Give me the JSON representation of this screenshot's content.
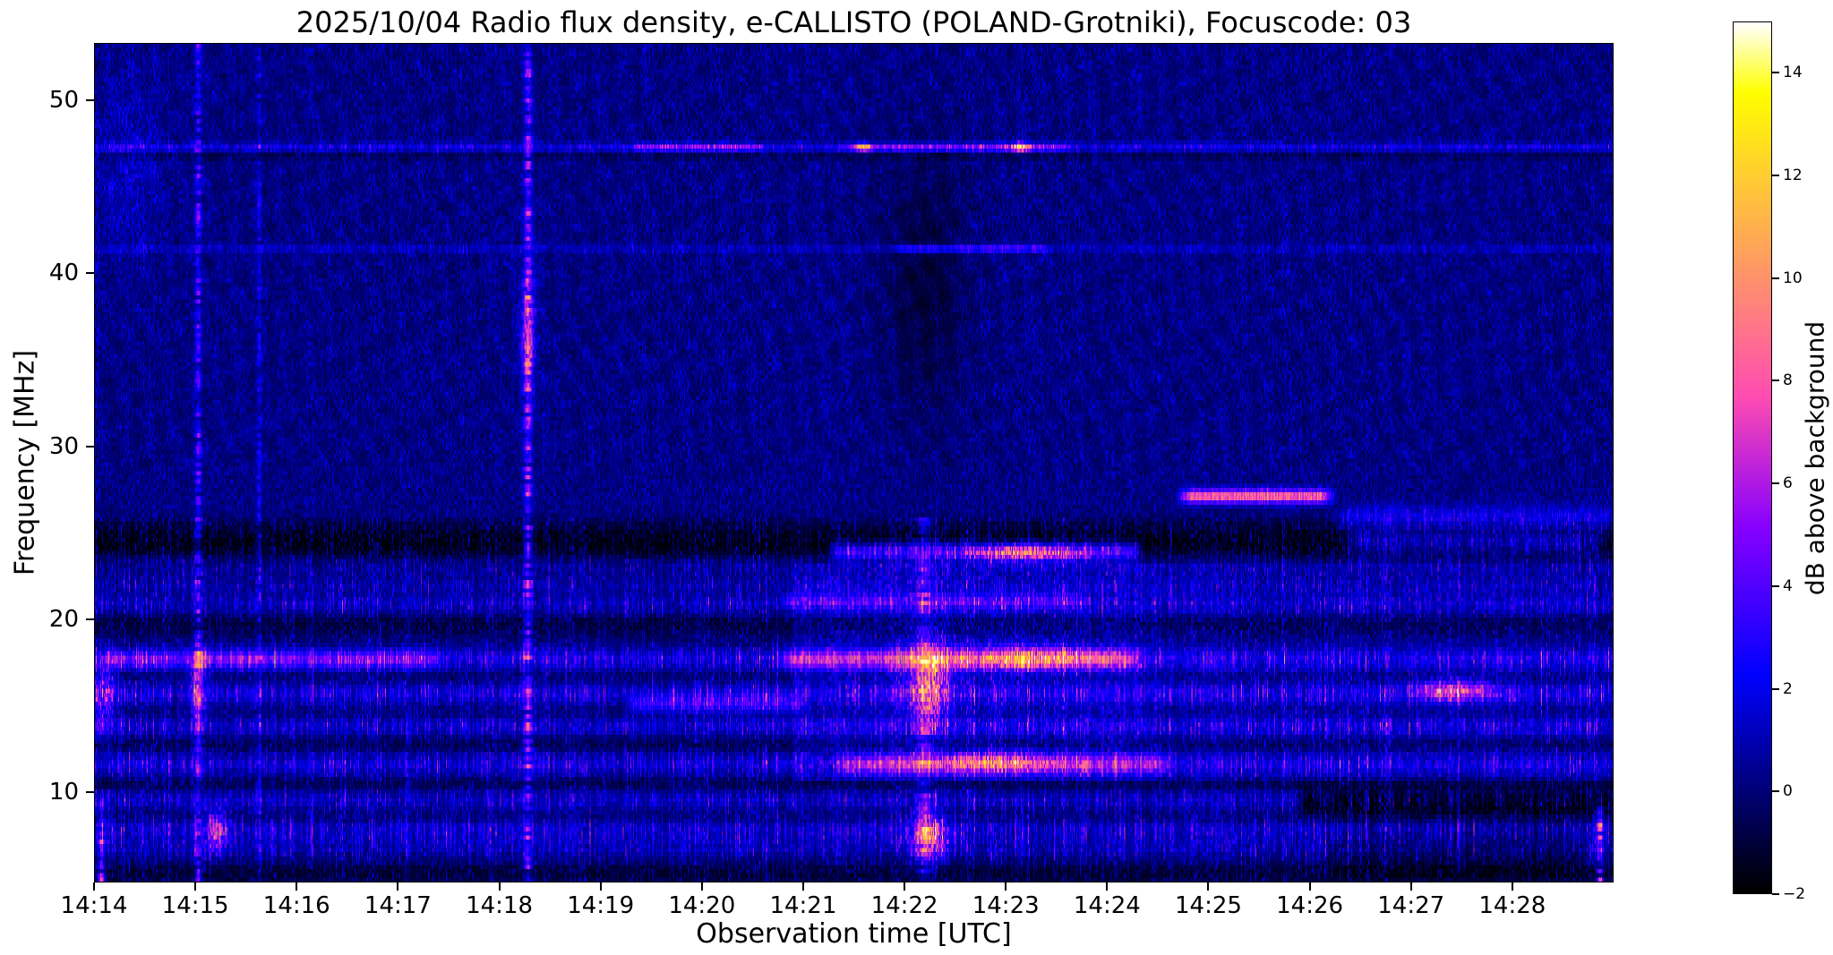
{
  "figure": {
    "title": "2025/10/04  Radio flux density, e-CALLISTO (POLAND-Grotniki), Focuscode: 03",
    "xlabel": "Observation time [UTC]",
    "ylabel": "Frequency [MHz]",
    "colorbar_label": "dB above background"
  },
  "chart_data": {
    "type": "heatmap",
    "subtype": "solar-radio-spectrogram",
    "title": "2025/10/04  Radio flux density, e-CALLISTO (POLAND-Grotniki), Focuscode: 03",
    "xlabel": "Observation time [UTC]",
    "ylabel": "Frequency [MHz]",
    "grid": false,
    "start_time_utc": "14:14",
    "end_time_utc": "14:29",
    "x_range_minutes": [
      0,
      15
    ],
    "x_ticks": [
      {
        "label": "14:14",
        "minute": 0
      },
      {
        "label": "14:15",
        "minute": 1
      },
      {
        "label": "14:16",
        "minute": 2
      },
      {
        "label": "14:17",
        "minute": 3
      },
      {
        "label": "14:18",
        "minute": 4
      },
      {
        "label": "14:19",
        "minute": 5
      },
      {
        "label": "14:20",
        "minute": 6
      },
      {
        "label": "14:21",
        "minute": 7
      },
      {
        "label": "14:22",
        "minute": 8
      },
      {
        "label": "14:23",
        "minute": 9
      },
      {
        "label": "14:24",
        "minute": 10
      },
      {
        "label": "14:25",
        "minute": 11
      },
      {
        "label": "14:26",
        "minute": 12
      },
      {
        "label": "14:27",
        "minute": 13
      },
      {
        "label": "14:28",
        "minute": 14
      }
    ],
    "freq_range_mhz": [
      4.8,
      53.3
    ],
    "y_ticks": [
      50,
      40,
      30,
      20,
      10
    ],
    "y_tick_labels": [
      "50",
      "40",
      "30",
      "20",
      "10"
    ],
    "colormap": "gnuplot2-like (black-blue-violet-magenta-orange-yellow-white)",
    "colorbar": {
      "label": "dB above background",
      "range": [
        -2,
        15
      ],
      "ticks": [
        14,
        12,
        10,
        8,
        6,
        4,
        2,
        0,
        -2
      ],
      "tick_labels": [
        "14",
        "12",
        "10",
        "8",
        "6",
        "4",
        "2",
        "0",
        "−2"
      ]
    },
    "noise": {
      "background_db": [
        -1,
        2
      ],
      "description": "dense blue speckle noise over black background"
    },
    "ripples": {
      "region_mhz": [
        27,
        53.3
      ],
      "amplitude_db": 0.8,
      "description": "faint diagonal interference fringes above ~27 MHz"
    },
    "bands": [
      {
        "f": 47.4,
        "w": 0.18,
        "amp": 1.2,
        "speckle": 2.0
      },
      {
        "f": 46.9,
        "w": 0.15,
        "amp": -0.8,
        "speckle": 0
      },
      {
        "f": 41.5,
        "w": 0.16,
        "amp": 0.7,
        "speckle": 1.2
      },
      {
        "f": 24.5,
        "w": 0.75,
        "amp": -1.7,
        "speckle": 0.8
      },
      {
        "f": 23.0,
        "w": 0.35,
        "amp": 0.4,
        "speckle": 1.5
      },
      {
        "f": 21.9,
        "w": 0.3,
        "amp": 0.5,
        "speckle": 1.8
      },
      {
        "f": 20.8,
        "w": 0.4,
        "amp": 0.7,
        "speckle": 2.2
      },
      {
        "f": 19.6,
        "w": 0.5,
        "amp": -0.7,
        "speckle": 0
      },
      {
        "f": 17.6,
        "w": 0.5,
        "amp": 1.3,
        "speckle": 3.0
      },
      {
        "f": 16.6,
        "w": 0.25,
        "amp": -0.4,
        "speckle": 0
      },
      {
        "f": 15.6,
        "w": 0.45,
        "amp": 1.2,
        "speckle": 3.0
      },
      {
        "f": 13.7,
        "w": 0.4,
        "amp": 0.9,
        "speckle": 2.6
      },
      {
        "f": 12.6,
        "w": 0.3,
        "amp": -0.5,
        "speckle": 0
      },
      {
        "f": 11.5,
        "w": 0.5,
        "amp": 1.0,
        "speckle": 2.6
      },
      {
        "f": 10.4,
        "w": 0.3,
        "amp": -0.6,
        "speckle": 0
      },
      {
        "f": 9.4,
        "w": 0.4,
        "amp": 0.8,
        "speckle": 2.2
      },
      {
        "f": 8.5,
        "w": 0.3,
        "amp": -0.5,
        "speckle": 0
      },
      {
        "f": 7.6,
        "w": 0.6,
        "amp": 0.9,
        "speckle": 2.6
      },
      {
        "f": 6.4,
        "w": 0.4,
        "amp": 0.3,
        "speckle": 1.6
      },
      {
        "f": 5.2,
        "w": 0.5,
        "amp": -0.8,
        "speckle": 0
      }
    ],
    "segments": [
      {
        "f": 47.4,
        "w": 0.15,
        "t0": 5.3,
        "t1": 6.6,
        "amp": 2.5,
        "speckle": 3
      },
      {
        "f": 47.4,
        "w": 0.15,
        "t0": 7.4,
        "t1": 9.6,
        "amp": 2.5,
        "speckle": 4
      },
      {
        "f": 41.5,
        "w": 0.15,
        "t0": 7.9,
        "t1": 9.4,
        "amp": 2.2,
        "speckle": 2.5
      },
      {
        "f": 27.1,
        "w": 0.28,
        "t0": 10.75,
        "t1": 12.2,
        "amp": 7.5,
        "speckle": 4
      },
      {
        "f": 25.8,
        "w": 0.5,
        "t0": 12.3,
        "t1": 15.0,
        "amp": 1.6,
        "speckle": 2.4
      },
      {
        "f": 24.4,
        "w": 0.45,
        "t0": 12.4,
        "t1": 14.9,
        "amp": 1.8,
        "speckle": 2.6
      },
      {
        "f": 23.9,
        "w": 0.35,
        "t0": 7.3,
        "t1": 10.3,
        "amp": 3.5,
        "speckle": 4
      },
      {
        "f": 17.6,
        "w": 0.4,
        "t0": 6.8,
        "t1": 10.3,
        "amp": 3.0,
        "speckle": 3
      },
      {
        "f": 17.6,
        "w": 0.35,
        "t0": 0.1,
        "t1": 3.4,
        "amp": 2.0,
        "speckle": 3
      },
      {
        "f": 15.0,
        "w": 0.35,
        "t0": 5.3,
        "t1": 7.0,
        "amp": 2.2,
        "speckle": 2.5
      },
      {
        "f": 21.0,
        "w": 0.3,
        "t0": 6.8,
        "t1": 9.8,
        "amp": 1.5,
        "speckle": 2.5
      },
      {
        "f": 11.5,
        "w": 0.4,
        "t0": 7.4,
        "t1": 10.6,
        "amp": 2.8,
        "speckle": 3
      },
      {
        "f": 9.3,
        "w": 0.5,
        "t0": 11.9,
        "t1": 15.0,
        "amp": -2.5,
        "speckle": 0
      },
      {
        "f": 6.6,
        "w": 1.2,
        "t0": 12.2,
        "t1": 14.7,
        "amp": -1.0,
        "speckle": 0
      }
    ],
    "vertical_streaks": [
      {
        "t": 0.06,
        "sigma": 0.025,
        "f0": 4.8,
        "f1": 9.5,
        "amp": 5.0
      },
      {
        "t": 1.02,
        "sigma": 0.022,
        "f0": 4.8,
        "f1": 53.3,
        "amp": 3.2
      },
      {
        "t": 1.62,
        "sigma": 0.018,
        "f0": 4.8,
        "f1": 53.3,
        "amp": 1.6
      },
      {
        "t": 4.28,
        "sigma": 0.028,
        "f0": 4.8,
        "f1": 53.3,
        "amp": 4.5
      },
      {
        "t": 8.2,
        "sigma": 0.05,
        "f0": 4.8,
        "f1": 26.0,
        "amp": 2.5
      },
      {
        "t": 14.88,
        "sigma": 0.022,
        "f0": 4.8,
        "f1": 9.0,
        "amp": 6.0
      },
      {
        "t": 3.1,
        "sigma": 0.015,
        "f0": 4.8,
        "f1": 26.0,
        "amp": 1.2
      },
      {
        "t": 5.95,
        "sigma": 0.015,
        "f0": 4.8,
        "f1": 26.0,
        "amp": 1.0
      }
    ],
    "blobs": [
      {
        "t": 4.28,
        "f": 36.5,
        "st": 0.05,
        "sf": 2.2,
        "amp": 5.0
      },
      {
        "t": 1.02,
        "f": 16.0,
        "st": 0.05,
        "sf": 1.3,
        "amp": 4.5
      },
      {
        "t": 8.25,
        "f": 16.2,
        "st": 0.14,
        "sf": 1.6,
        "amp": 6.5
      },
      {
        "t": 8.25,
        "f": 7.3,
        "st": 0.12,
        "sf": 0.9,
        "amp": 6.5
      },
      {
        "t": 13.45,
        "f": 15.8,
        "st": 0.25,
        "sf": 0.4,
        "amp": 6.0
      },
      {
        "t": 9.15,
        "f": 47.4,
        "st": 0.06,
        "sf": 0.18,
        "amp": 8.0
      },
      {
        "t": 7.6,
        "f": 47.4,
        "st": 0.05,
        "sf": 0.18,
        "amp": 6.0
      },
      {
        "t": 9.2,
        "f": 23.8,
        "st": 0.4,
        "sf": 0.3,
        "amp": 6.0
      },
      {
        "t": 1.2,
        "f": 7.6,
        "st": 0.07,
        "sf": 0.8,
        "amp": 6.0
      },
      {
        "t": 8.2,
        "f": 39.5,
        "st": 0.3,
        "sf": 5.5,
        "amp": -1.2
      },
      {
        "t": 0.3,
        "f": 46.5,
        "st": 0.25,
        "sf": 4.0,
        "amp": 1.0
      },
      {
        "t": 0.08,
        "f": 15.5,
        "st": 0.08,
        "sf": 1.5,
        "amp": 4.0
      },
      {
        "t": 9.3,
        "f": 17.7,
        "st": 0.5,
        "sf": 0.5,
        "amp": 4.0
      },
      {
        "t": 8.9,
        "f": 11.6,
        "st": 0.4,
        "sf": 0.4,
        "amp": 3.5
      }
    ],
    "regions": [
      {
        "t0": 6.9,
        "t1": 10.5,
        "f0": 10.5,
        "f1": 23.3,
        "amp": 1.1
      },
      {
        "t0": 10.5,
        "t1": 15.0,
        "f0": 10.5,
        "f1": 23.3,
        "amp": 0.5
      }
    ]
  }
}
